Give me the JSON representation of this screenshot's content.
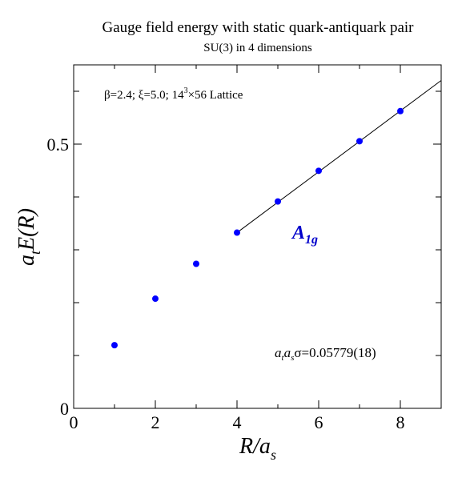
{
  "chart_data": {
    "type": "scatter",
    "title": "Gauge field energy with static quark-antiquark pair",
    "subtitle": "SU(3) in 4 dimensions",
    "xlabel": {
      "main": "R/a",
      "sub": "s"
    },
    "ylabel": {
      "pre": "a",
      "pre_sub": "t",
      "main": "E(R)"
    },
    "xlim": [
      0,
      9
    ],
    "ylim": [
      0,
      0.65
    ],
    "xticks": [
      0,
      2,
      4,
      6,
      8
    ],
    "xtick_labels": [
      "0",
      "2",
      "4",
      "6",
      "8"
    ],
    "yticks": [
      0,
      0.5
    ],
    "ytick_labels": [
      "0",
      "0.5"
    ],
    "series": [
      {
        "x": [
          1,
          2,
          3,
          4,
          5,
          6,
          7,
          8
        ],
        "y": [
          0.1195,
          0.2075,
          0.2735,
          0.3325,
          0.3915,
          0.4495,
          0.5055,
          0.5625
        ],
        "color": "#0000ff"
      }
    ],
    "fit_line": {
      "x": [
        4,
        9
      ],
      "y": [
        0.3325,
        0.6205
      ],
      "color": "#000000"
    },
    "annotations": {
      "params": {
        "part1": "β=2.4;  ξ=5.0;  14",
        "sup": "3",
        "part2": "×56 Lattice"
      },
      "label": {
        "main": "A",
        "sub": "1g",
        "color": "#0000cc"
      },
      "sigma": {
        "a1": "a",
        "s1": "t",
        "a2": "a",
        "s2": "s",
        "rest": "σ=0.05779(18)"
      }
    }
  }
}
